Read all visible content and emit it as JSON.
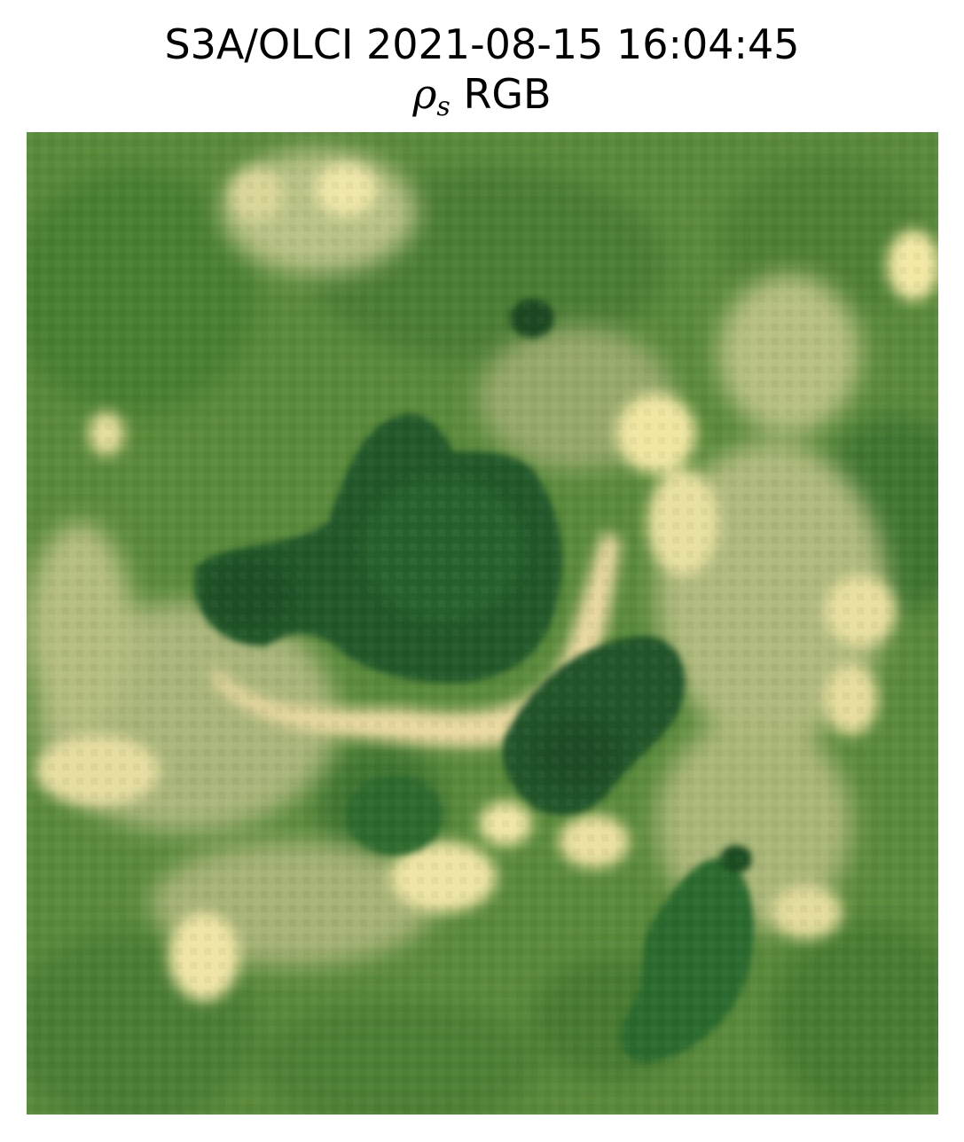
{
  "figure": {
    "title_line1": "S3A/OLCI 2021-08-15 16:04:45",
    "title_symbol": "ρ",
    "title_symbol_sub": "s",
    "title_suffix": "RGB"
  },
  "image": {
    "subject": "Sentinel-3 OLCI surface reflectance true-color scene: vegetated green terrain with dark green lakes and bright tan shoreline/field patches",
    "colors": {
      "vegetation": "#5a8a3c",
      "vegetation_dark": "#3f7430",
      "lake": "#24592a",
      "lake_dark": "#1d4a22",
      "bright_land": "#e8e0a0",
      "pale_land": "#b9c286"
    }
  }
}
